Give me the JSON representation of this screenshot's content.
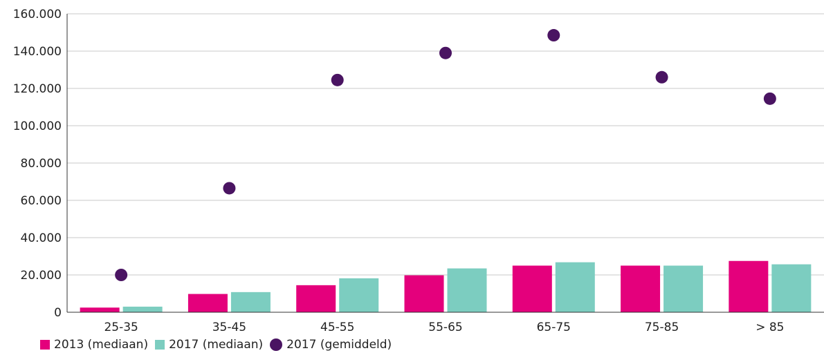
{
  "chart_data": {
    "type": "bar",
    "categories": [
      "25-35",
      "35-45",
      "45-55",
      "55-65",
      "65-75",
      "75-85",
      "> 85"
    ],
    "series": [
      {
        "name": "2013 (mediaan)",
        "type": "bar",
        "color": "#e4007c",
        "values": [
          2500,
          9800,
          14500,
          19800,
          25000,
          25000,
          27500
        ]
      },
      {
        "name": "2017 (mediaan)",
        "type": "bar",
        "color": "#7ccdc0",
        "values": [
          3000,
          10800,
          18200,
          23500,
          26800,
          25000,
          25700
        ]
      },
      {
        "name": "2017 (gemiddeld)",
        "type": "scatter",
        "color": "#4a1462",
        "values": [
          20000,
          66500,
          124500,
          139000,
          148500,
          126000,
          114500
        ]
      }
    ],
    "y_ticks": [
      "0",
      "20.000",
      "40.000",
      "60.000",
      "80.000",
      "100.000",
      "120.000",
      "140.000",
      "160.000"
    ],
    "ylim": [
      0,
      160000
    ],
    "title": "",
    "xlabel": "",
    "ylabel": "",
    "grid": true,
    "legend_position": "bottom-left"
  }
}
